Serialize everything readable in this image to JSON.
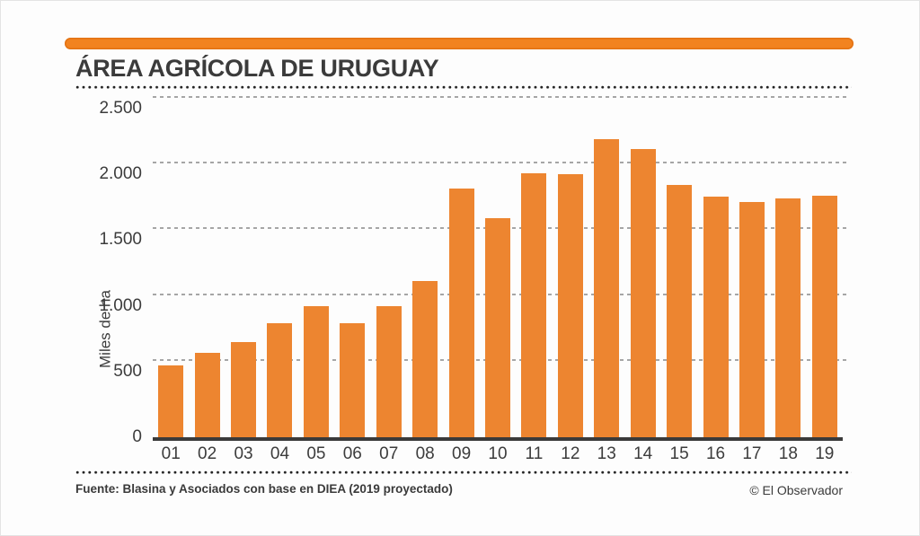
{
  "title": "ÁREA AGRÍCOLA DE URUGUAY",
  "footer": {
    "source": "Fuente: Blasina y Asociados con base en DIEA (2019 proyectado)",
    "credit": "© El Observador"
  },
  "colors": {
    "accent_orange": "#F28320",
    "bar_orange": "#ED8530",
    "text_dark": "#3C3C3C",
    "gridline_gray": "#A6A6A6",
    "axis_dark": "#3A3A3A"
  },
  "chart_data": {
    "type": "bar",
    "title": "ÁREA AGRÍCOLA DE URUGUAY",
    "xlabel": "",
    "ylabel": "Miles de ha",
    "categories": [
      "01",
      "02",
      "03",
      "04",
      "05",
      "06",
      "07",
      "08",
      "09",
      "10",
      "11",
      "12",
      "13",
      "14",
      "15",
      "16",
      "17",
      "18",
      "19"
    ],
    "values": [
      545,
      645,
      725,
      870,
      1000,
      870,
      995,
      1190,
      1890,
      1665,
      2005,
      2000,
      2265,
      2190,
      1920,
      1830,
      1790,
      1820,
      1835
    ],
    "yticks": [
      {
        "label": "0",
        "value": 0
      },
      {
        "label": "500",
        "value": 500
      },
      {
        "label": "1.000",
        "value": 1000
      },
      {
        "label": "1.500",
        "value": 1500
      },
      {
        "label": "2.000",
        "value": 2000
      },
      {
        "label": "2.500",
        "value": 2500
      }
    ],
    "ylim": [
      0,
      2500
    ],
    "grid": true,
    "legend": false
  }
}
